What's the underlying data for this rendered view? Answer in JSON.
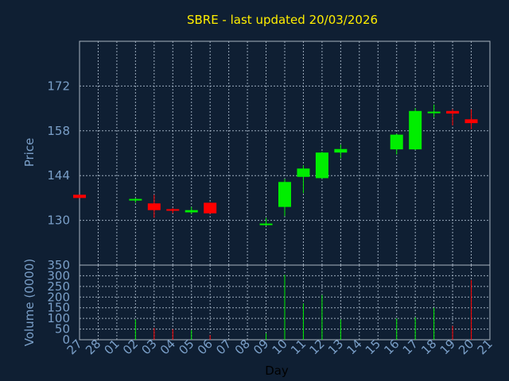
{
  "chart_data": [
    {
      "type": "candlestick",
      "title": "SBRE - last updated 20/03/2026",
      "ylabel": "Price",
      "xlabel": "Day",
      "ylim": [
        116,
        186
      ],
      "yticks": [
        130,
        144,
        158,
        172
      ],
      "grid": true,
      "colors": {
        "up": "#00ee00",
        "down": "#ff0000",
        "background": "#0f1f33",
        "text": "#7a9fc8",
        "title": "#ffee00"
      },
      "categories": [
        "27",
        "28",
        "01",
        "02",
        "03",
        "04",
        "05",
        "06",
        "07",
        "08",
        "09",
        "10",
        "11",
        "12",
        "13",
        "14",
        "15",
        "16",
        "17",
        "18",
        "19",
        "20",
        "21"
      ],
      "candles": [
        {
          "day": "27",
          "open": 138,
          "close": 137,
          "high": 138,
          "low": 137
        },
        {
          "day": "02",
          "open": 136.3,
          "close": 136.7,
          "high": 137,
          "low": 135.5
        },
        {
          "day": "03",
          "open": 135.3,
          "close": 133.2,
          "high": 138,
          "low": 130.8
        },
        {
          "day": "04",
          "open": 133.5,
          "close": 133.1,
          "high": 133.8,
          "low": 132.2
        },
        {
          "day": "05",
          "open": 132.5,
          "close": 133.2,
          "high": 134.2,
          "low": 132
        },
        {
          "day": "06",
          "open": 135.5,
          "close": 132.2,
          "high": 135.6,
          "low": 132
        },
        {
          "day": "09",
          "open": 128.7,
          "close": 129,
          "high": 130.8,
          "low": 128.3
        },
        {
          "day": "10",
          "open": 134.2,
          "close": 142,
          "high": 143,
          "low": 131.3
        },
        {
          "day": "11",
          "open": 143.6,
          "close": 146.2,
          "high": 147.2,
          "low": 138.5
        },
        {
          "day": "12",
          "open": 143.2,
          "close": 151.2,
          "high": 151.4,
          "low": 143
        },
        {
          "day": "13",
          "open": 151.2,
          "close": 152.3,
          "high": 153.7,
          "low": 149.4
        },
        {
          "day": "16",
          "open": 152.2,
          "close": 156.8,
          "high": 157.1,
          "low": 150.6
        },
        {
          "day": "17",
          "open": 152.2,
          "close": 164.2,
          "high": 165.1,
          "low": 152
        },
        {
          "day": "18",
          "open": 163.6,
          "close": 164,
          "high": 166.2,
          "low": 162.2
        },
        {
          "day": "19",
          "open": 164.2,
          "close": 163.4,
          "high": 164.8,
          "low": 159.7
        },
        {
          "day": "20",
          "open": 161.6,
          "close": 160.4,
          "high": 164.7,
          "low": 158.5
        }
      ]
    },
    {
      "type": "bar",
      "ylabel": "Volume (0000)",
      "ylim": [
        0,
        350
      ],
      "yticks": [
        0,
        50,
        100,
        150,
        200,
        250,
        300,
        350
      ],
      "grid": true,
      "categories": [
        "27",
        "28",
        "01",
        "02",
        "03",
        "04",
        "05",
        "06",
        "07",
        "08",
        "09",
        "10",
        "11",
        "12",
        "13",
        "14",
        "15",
        "16",
        "17",
        "18",
        "19",
        "20",
        "21"
      ],
      "volumes": [
        {
          "day": "02",
          "value": 95,
          "dir": "up"
        },
        {
          "day": "03",
          "value": 55,
          "dir": "down"
        },
        {
          "day": "04",
          "value": 50,
          "dir": "down"
        },
        {
          "day": "05",
          "value": 45,
          "dir": "up"
        },
        {
          "day": "06",
          "value": 22,
          "dir": "down"
        },
        {
          "day": "09",
          "value": 30,
          "dir": "up"
        },
        {
          "day": "10",
          "value": 305,
          "dir": "up"
        },
        {
          "day": "11",
          "value": 170,
          "dir": "up"
        },
        {
          "day": "12",
          "value": 210,
          "dir": "up"
        },
        {
          "day": "13",
          "value": 95,
          "dir": "up"
        },
        {
          "day": "16",
          "value": 100,
          "dir": "up"
        },
        {
          "day": "17",
          "value": 105,
          "dir": "up"
        },
        {
          "day": "18",
          "value": 150,
          "dir": "up"
        },
        {
          "day": "19",
          "value": 65,
          "dir": "down"
        },
        {
          "day": "20",
          "value": 280,
          "dir": "down"
        }
      ]
    }
  ]
}
